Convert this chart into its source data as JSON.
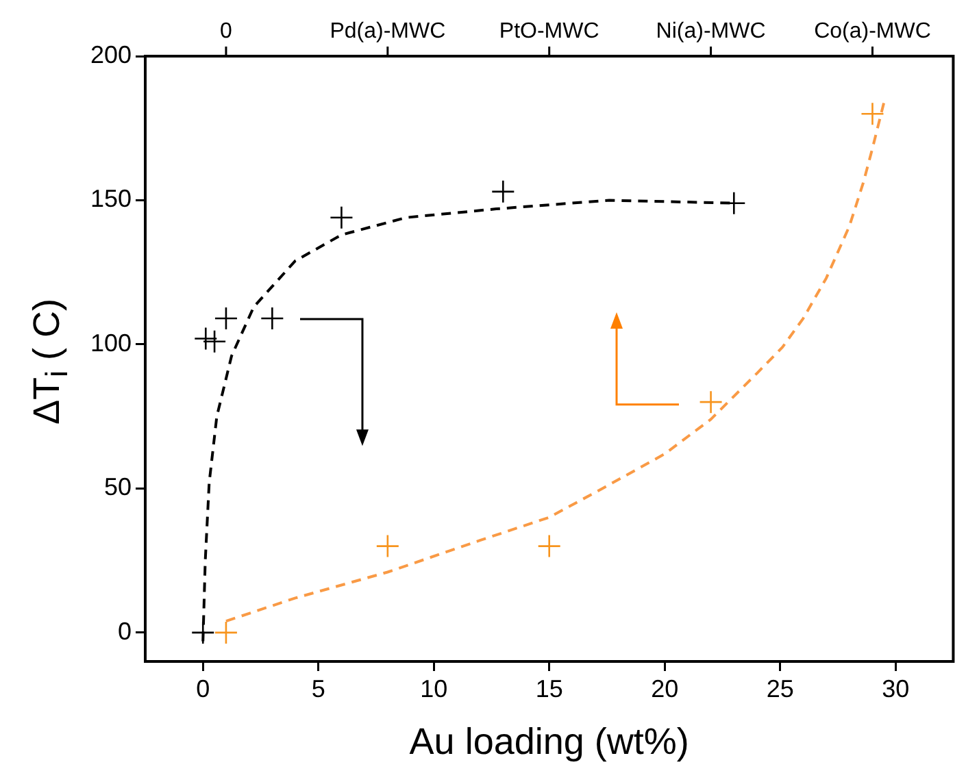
{
  "chart_data": {
    "type": "scatter",
    "xlabel": "Au loading (wt%)",
    "ylabel": "ΔT$_{i}$ ( C)",
    "xlim": [
      -2.5,
      32.5
    ],
    "xticks": [
      0,
      5,
      10,
      15,
      20,
      25,
      30
    ],
    "annotations": [
      {
        "text": "0",
        "x": 1
      },
      {
        "text": "Pd(a)-MWC",
        "x": 8
      },
      {
        "text": "PtO-MWC",
        "x": 15
      },
      {
        "text": "Ni(a)-MWC",
        "x": 22
      },
      {
        "text": "Co(a)-MWC",
        "x": 29
      }
    ],
    "ylim": [
      -10,
      200
    ],
    "yticks": [
      0,
      50,
      100,
      150,
      200
    ],
    "grid": false,
    "legend": false,
    "series": [
      {
        "type": "line",
        "color": "#000000",
        "marker": "none",
        "line_style": "dashed",
        "x": [
          0,
          0.1,
          0.27,
          0.6,
          1.24,
          2.2,
          4,
          6,
          8.8,
          12.7,
          17.6,
          23
        ],
        "values": [
          -3,
          25,
          52,
          75,
          96,
          113,
          129,
          138,
          144,
          147,
          150,
          149
        ]
      },
      {
        "type": "line",
        "color": "#f99a45",
        "marker": "none",
        "line_style": "dashed",
        "x": [
          1,
          4,
          8,
          12,
          15,
          17.3,
          20,
          22,
          24,
          25.1,
          26,
          27,
          28,
          28.6,
          29,
          29.5
        ],
        "values": [
          4,
          12,
          21,
          32,
          40,
          50,
          62,
          74,
          90,
          99,
          109,
          123,
          141,
          156,
          168,
          184
        ]
      },
      {
        "color": "#000000",
        "marker": "cross",
        "x": [
          0,
          0.12,
          0.5,
          1,
          3,
          6,
          13,
          23
        ],
        "values": [
          0,
          102,
          101,
          109,
          109,
          144,
          153,
          149
        ]
      },
      {
        "color": "#f7941d",
        "marker": "cross",
        "x": [
          1,
          8,
          15,
          22,
          29
        ],
        "values": [
          0,
          30,
          30,
          80,
          180
        ]
      }
    ]
  }
}
